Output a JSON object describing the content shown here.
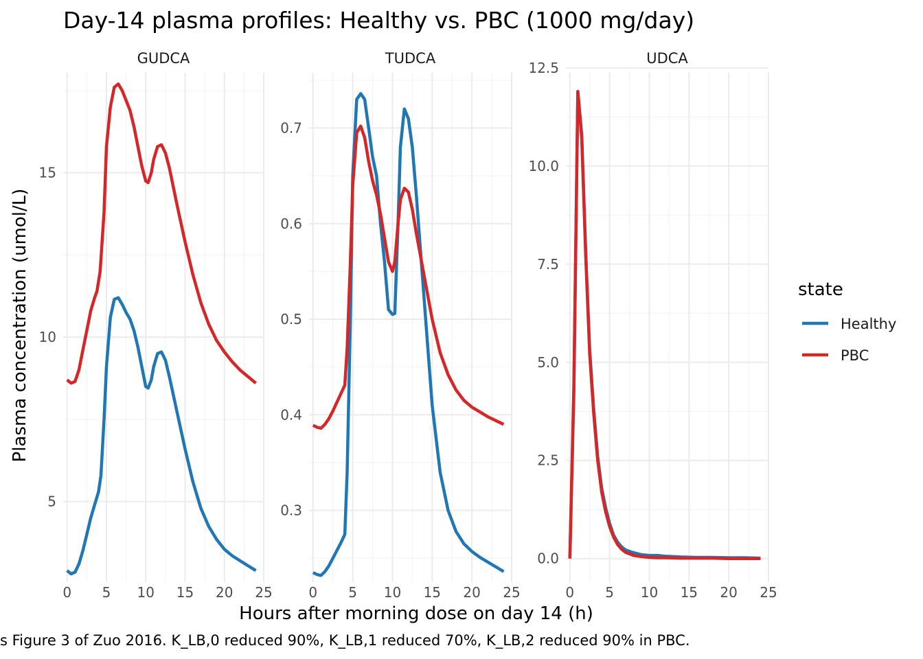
{
  "title": "Day-14 plasma profiles: Healthy vs. PBC (1000 mg/day)",
  "x_axis_title": "Hours after morning dose on day 14 (h)",
  "y_axis_title": "Plasma concentration (umol/L)",
  "caption": "s Figure 3 of Zuo 2016. K_LB,0 reduced 90%, K_LB,1 reduced 70%, K_LB,2 reduced 90% in PBC.",
  "legend": {
    "title": "state",
    "items": [
      {
        "label": "Healthy",
        "color": "#1f77b4"
      },
      {
        "label": "PBC",
        "color": "#d62728"
      }
    ]
  },
  "chart_data": [
    {
      "type": "line",
      "panel": "GUDCA",
      "xlim": [
        -0.5,
        25
      ],
      "ylim": [
        2.55,
        18.25
      ],
      "x_ticks": [
        0,
        5,
        10,
        15,
        20,
        25
      ],
      "y_ticks": [
        5,
        10,
        15
      ],
      "y_tick_labels": [
        "5",
        "10",
        "15"
      ],
      "series": [
        {
          "name": "Healthy",
          "color": "#1f77b4",
          "points": [
            [
              0,
              2.9
            ],
            [
              0.5,
              2.8
            ],
            [
              1,
              2.85
            ],
            [
              1.5,
              3.1
            ],
            [
              2,
              3.5
            ],
            [
              2.5,
              4.0
            ],
            [
              3,
              4.5
            ],
            [
              3.5,
              4.9
            ],
            [
              4,
              5.3
            ],
            [
              4.3,
              5.8
            ],
            [
              4.7,
              7.5
            ],
            [
              5,
              9.1
            ],
            [
              5.5,
              10.6
            ],
            [
              6,
              11.15
            ],
            [
              6.5,
              11.2
            ],
            [
              7,
              11.0
            ],
            [
              7.5,
              10.75
            ],
            [
              8,
              10.55
            ],
            [
              8.5,
              10.2
            ],
            [
              9,
              9.7
            ],
            [
              9.5,
              9.1
            ],
            [
              10,
              8.5
            ],
            [
              10.3,
              8.45
            ],
            [
              10.7,
              8.7
            ],
            [
              11,
              9.1
            ],
            [
              11.5,
              9.5
            ],
            [
              12,
              9.55
            ],
            [
              12.5,
              9.3
            ],
            [
              13,
              8.8
            ],
            [
              14,
              7.7
            ],
            [
              15,
              6.6
            ],
            [
              16,
              5.6
            ],
            [
              17,
              4.8
            ],
            [
              18,
              4.25
            ],
            [
              19,
              3.85
            ],
            [
              20,
              3.55
            ],
            [
              21,
              3.35
            ],
            [
              22,
              3.2
            ],
            [
              23,
              3.05
            ],
            [
              24,
              2.9
            ]
          ]
        },
        {
          "name": "PBC",
          "color": "#d62728",
          "points": [
            [
              0,
              8.7
            ],
            [
              0.5,
              8.6
            ],
            [
              1,
              8.65
            ],
            [
              1.5,
              9.0
            ],
            [
              2,
              9.6
            ],
            [
              2.5,
              10.2
            ],
            [
              3,
              10.8
            ],
            [
              3.5,
              11.2
            ],
            [
              3.8,
              11.4
            ],
            [
              4.2,
              12.0
            ],
            [
              4.7,
              13.8
            ],
            [
              5,
              15.8
            ],
            [
              5.5,
              17.0
            ],
            [
              6,
              17.6
            ],
            [
              6.5,
              17.7
            ],
            [
              7,
              17.5
            ],
            [
              7.5,
              17.2
            ],
            [
              8,
              16.9
            ],
            [
              8.5,
              16.4
            ],
            [
              9,
              15.8
            ],
            [
              9.5,
              15.2
            ],
            [
              10,
              14.75
            ],
            [
              10.3,
              14.7
            ],
            [
              10.7,
              15.0
            ],
            [
              11,
              15.4
            ],
            [
              11.5,
              15.8
            ],
            [
              12,
              15.85
            ],
            [
              12.5,
              15.6
            ],
            [
              13,
              15.15
            ],
            [
              14,
              14.0
            ],
            [
              15,
              12.9
            ],
            [
              16,
              11.9
            ],
            [
              17,
              11.05
            ],
            [
              18,
              10.4
            ],
            [
              19,
              9.9
            ],
            [
              20,
              9.55
            ],
            [
              21,
              9.25
            ],
            [
              22,
              9.0
            ],
            [
              23,
              8.8
            ],
            [
              24,
              8.6
            ]
          ]
        }
      ]
    },
    {
      "type": "line",
      "panel": "TUDCA",
      "xlim": [
        -0.5,
        25
      ],
      "ylim": [
        0.225,
        0.765
      ],
      "x_ticks": [
        0,
        5,
        10,
        15,
        20,
        25
      ],
      "y_ticks": [
        0.3,
        0.4,
        0.5,
        0.6,
        0.7
      ],
      "y_tick_labels": [
        "0.3",
        "0.4",
        "0.5",
        "0.6",
        "0.7"
      ],
      "series": [
        {
          "name": "Healthy",
          "color": "#1f77b4",
          "points": [
            [
              0,
              0.235
            ],
            [
              0.5,
              0.233
            ],
            [
              1,
              0.232
            ],
            [
              1.5,
              0.236
            ],
            [
              2,
              0.242
            ],
            [
              2.5,
              0.25
            ],
            [
              3,
              0.258
            ],
            [
              3.5,
              0.266
            ],
            [
              4,
              0.275
            ],
            [
              4.3,
              0.34
            ],
            [
              4.7,
              0.5
            ],
            [
              5,
              0.65
            ],
            [
              5.5,
              0.73
            ],
            [
              6,
              0.736
            ],
            [
              6.5,
              0.73
            ],
            [
              7,
              0.7
            ],
            [
              7.5,
              0.67
            ],
            [
              8,
              0.65
            ],
            [
              8.5,
              0.6
            ],
            [
              9,
              0.56
            ],
            [
              9.5,
              0.51
            ],
            [
              10,
              0.505
            ],
            [
              10.3,
              0.506
            ],
            [
              10.7,
              0.6
            ],
            [
              11,
              0.68
            ],
            [
              11.5,
              0.72
            ],
            [
              12,
              0.71
            ],
            [
              12.5,
              0.68
            ],
            [
              13,
              0.63
            ],
            [
              14,
              0.52
            ],
            [
              15,
              0.41
            ],
            [
              16,
              0.34
            ],
            [
              17,
              0.3
            ],
            [
              18,
              0.278
            ],
            [
              19,
              0.265
            ],
            [
              20,
              0.257
            ],
            [
              21,
              0.251
            ],
            [
              22,
              0.246
            ],
            [
              23,
              0.241
            ],
            [
              24,
              0.236
            ]
          ]
        },
        {
          "name": "PBC",
          "color": "#d62728",
          "points": [
            [
              0,
              0.389
            ],
            [
              0.5,
              0.387
            ],
            [
              1,
              0.386
            ],
            [
              1.5,
              0.39
            ],
            [
              2,
              0.396
            ],
            [
              2.5,
              0.404
            ],
            [
              3,
              0.413
            ],
            [
              3.5,
              0.422
            ],
            [
              4,
              0.431
            ],
            [
              4.3,
              0.47
            ],
            [
              4.7,
              0.56
            ],
            [
              5,
              0.64
            ],
            [
              5.5,
              0.695
            ],
            [
              6,
              0.702
            ],
            [
              6.5,
              0.69
            ],
            [
              7,
              0.665
            ],
            [
              7.5,
              0.645
            ],
            [
              8,
              0.63
            ],
            [
              8.5,
              0.61
            ],
            [
              9,
              0.585
            ],
            [
              9.5,
              0.56
            ],
            [
              10,
              0.55
            ],
            [
              10.3,
              0.56
            ],
            [
              10.7,
              0.6
            ],
            [
              11,
              0.625
            ],
            [
              11.5,
              0.637
            ],
            [
              12,
              0.633
            ],
            [
              12.5,
              0.615
            ],
            [
              13,
              0.59
            ],
            [
              14,
              0.545
            ],
            [
              15,
              0.5
            ],
            [
              16,
              0.465
            ],
            [
              17,
              0.442
            ],
            [
              18,
              0.426
            ],
            [
              19,
              0.415
            ],
            [
              20,
              0.408
            ],
            [
              21,
              0.403
            ],
            [
              22,
              0.398
            ],
            [
              23,
              0.394
            ],
            [
              24,
              0.39
            ]
          ]
        }
      ]
    },
    {
      "type": "line",
      "panel": "UDCA",
      "xlim": [
        -0.5,
        25
      ],
      "ylim": [
        -0.6,
        12.55
      ],
      "x_ticks": [
        0,
        5,
        10,
        15,
        20,
        25
      ],
      "y_ticks": [
        0,
        2.5,
        5,
        7.5,
        10,
        12.5
      ],
      "y_tick_labels": [
        "0.0",
        "2.5",
        "5.0",
        "7.5",
        "10.0",
        "12.5"
      ],
      "series": [
        {
          "name": "Healthy",
          "color": "#1f77b4",
          "points": [
            [
              0,
              0.0
            ],
            [
              0.5,
              4.2
            ],
            [
              1,
              11.9
            ],
            [
              1.5,
              10.8
            ],
            [
              2,
              7.8
            ],
            [
              2.5,
              5.3
            ],
            [
              3,
              3.8
            ],
            [
              3.5,
              2.6
            ],
            [
              4,
              1.8
            ],
            [
              4.5,
              1.3
            ],
            [
              5,
              0.9
            ],
            [
              5.5,
              0.6
            ],
            [
              6,
              0.42
            ],
            [
              6.5,
              0.3
            ],
            [
              7,
              0.22
            ],
            [
              8,
              0.15
            ],
            [
              9,
              0.1
            ],
            [
              10,
              0.08
            ],
            [
              11,
              0.08
            ],
            [
              12,
              0.06
            ],
            [
              13,
              0.05
            ],
            [
              14,
              0.04
            ],
            [
              16,
              0.03
            ],
            [
              18,
              0.03
            ],
            [
              20,
              0.02
            ],
            [
              22,
              0.02
            ],
            [
              24,
              0.01
            ]
          ]
        },
        {
          "name": "PBC",
          "color": "#d62728",
          "points": [
            [
              0,
              0.0
            ],
            [
              0.5,
              4.4
            ],
            [
              1,
              11.9
            ],
            [
              1.5,
              10.7
            ],
            [
              2,
              7.7
            ],
            [
              2.5,
              5.2
            ],
            [
              3,
              3.7
            ],
            [
              3.5,
              2.5
            ],
            [
              4,
              1.7
            ],
            [
              4.5,
              1.2
            ],
            [
              5,
              0.82
            ],
            [
              5.5,
              0.55
            ],
            [
              6,
              0.36
            ],
            [
              6.5,
              0.24
            ],
            [
              7,
              0.16
            ],
            [
              8,
              0.08
            ],
            [
              9,
              0.05
            ],
            [
              10,
              0.03
            ],
            [
              11,
              0.02
            ],
            [
              12,
              0.02
            ],
            [
              14,
              0.01
            ],
            [
              16,
              0.01
            ],
            [
              18,
              0.01
            ],
            [
              20,
              0.0
            ],
            [
              22,
              0.0
            ],
            [
              24,
              0.0
            ]
          ]
        }
      ]
    }
  ]
}
